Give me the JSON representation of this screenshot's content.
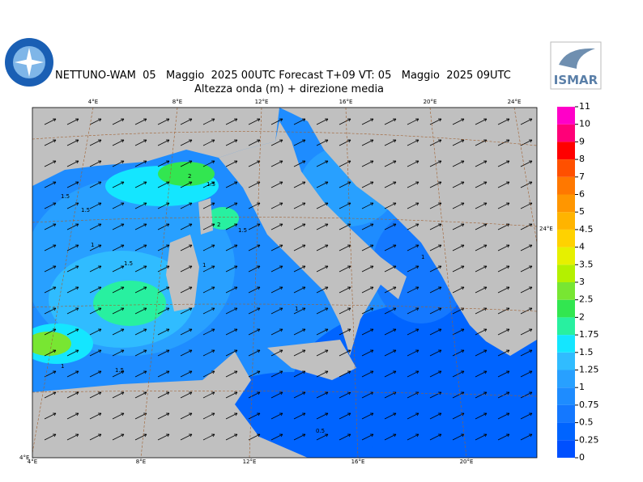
{
  "header": {
    "title": "NETTUNO-WAM  05   Maggio  2025 00UTC Forecast T+09 VT: 05   Maggio  2025 09UTC",
    "subtitle": "Altezza onda (m) + direzione media",
    "logo": "ISMAR"
  },
  "map": {
    "top_labels": [
      "4°E",
      "8°E",
      "12°E",
      "16°E",
      "20°E",
      "24°E"
    ],
    "bottom_labels": [
      "4°E",
      "8°E",
      "12°E",
      "16°E",
      "20°E"
    ],
    "right_labels": [
      "24°E"
    ],
    "left_labels": [
      "4°E"
    ],
    "contour_labels": [
      "1.5",
      "1.5",
      "2",
      "1.5",
      "2",
      "1.5",
      "1",
      "1.5",
      "1",
      "1",
      "1",
      "1.5",
      "1",
      "0.5"
    ]
  },
  "legend": {
    "levels": [
      0,
      0.25,
      0.5,
      0.75,
      1,
      1.25,
      1.5,
      1.75,
      2,
      2.5,
      3,
      3.5,
      4,
      4.5,
      5,
      6,
      7,
      8,
      9,
      10,
      11
    ],
    "colors": [
      "#0050ff",
      "#0064ff",
      "#1478ff",
      "#1e8cff",
      "#28a0ff",
      "#30bcff",
      "#14e6ff",
      "#28f0a0",
      "#32e650",
      "#78e632",
      "#b4f000",
      "#e6f000",
      "#ffd200",
      "#ffb400",
      "#ff9600",
      "#ff7800",
      "#ff5000",
      "#ff0000",
      "#ff0078",
      "#ff00c8"
    ]
  }
}
